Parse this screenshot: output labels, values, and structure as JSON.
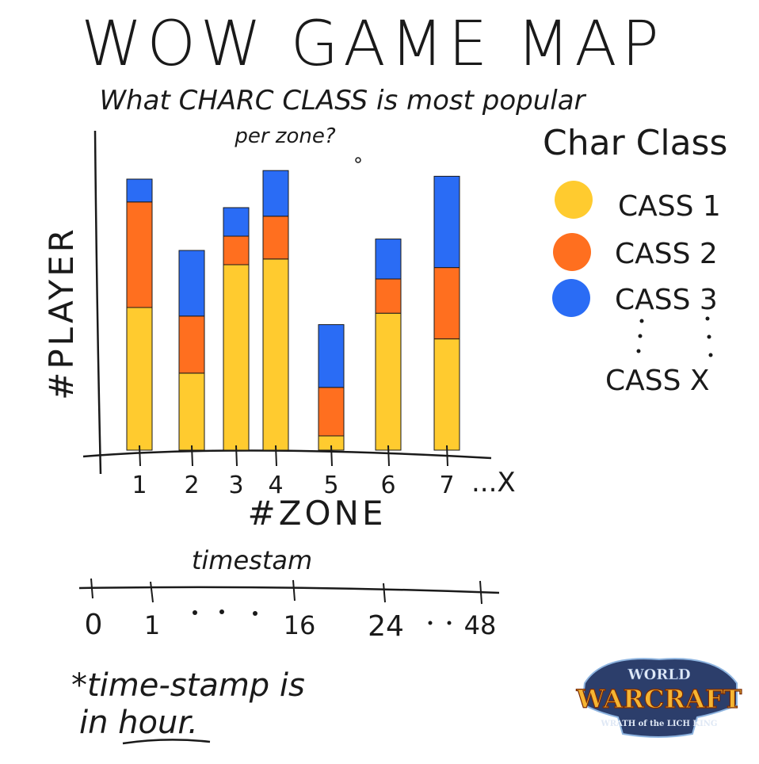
{
  "title": "WOW GAME MAP",
  "subtitle_line1": "What CHARC CLASS is most popular",
  "subtitle_line2": "per zone?",
  "legend": {
    "title": "Char Class",
    "items": [
      {
        "label": "CASS 1",
        "color": "#FFCB2F"
      },
      {
        "label": "CASS 2",
        "color": "#FF6F1F"
      },
      {
        "label": "CASS 3",
        "color": "#2A6CF5"
      },
      {
        "label": "CASS X",
        "color": ""
      }
    ]
  },
  "chart_data": {
    "type": "bar",
    "stacked": true,
    "categories": [
      "1",
      "2",
      "3",
      "4",
      "5",
      "6",
      "7"
    ],
    "category_suffix": "...X",
    "xlabel": "#ZONE",
    "ylabel": "#PLAYER",
    "series": [
      {
        "name": "CASS 1",
        "color": "#FFCB2F",
        "values": [
          50,
          27,
          65,
          67,
          5,
          48,
          39
        ]
      },
      {
        "name": "CASS 2",
        "color": "#FF6F1F",
        "values": [
          37,
          20,
          10,
          15,
          17,
          12,
          25
        ]
      },
      {
        "name": "CASS 3",
        "color": "#2A6CF5",
        "values": [
          8,
          23,
          10,
          16,
          22,
          14,
          32
        ]
      }
    ],
    "ylim": [
      0,
      100
    ]
  },
  "timeline": {
    "label": "timestam",
    "ticks": [
      "0",
      "1",
      "16",
      "24",
      "48"
    ],
    "note_line1": "*time-stamp is",
    "note_line2": "in hour."
  },
  "logo": {
    "line1": "WORLD",
    "line2": "WARCRAFT",
    "line3": "WRATH of the LICH KING"
  }
}
